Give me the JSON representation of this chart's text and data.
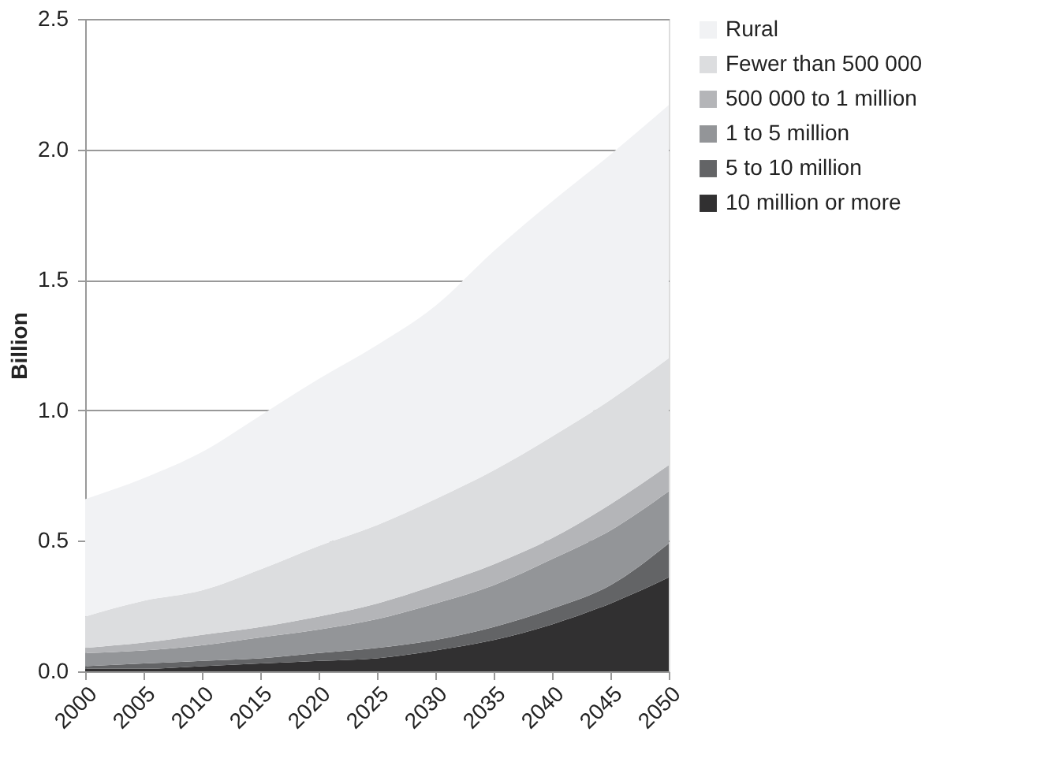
{
  "chart_data": {
    "type": "area",
    "ylabel": "Billion",
    "stacked": true,
    "x": [
      2000,
      2005,
      2010,
      2015,
      2020,
      2025,
      2030,
      2035,
      2040,
      2045,
      2050
    ],
    "xlim": [
      2000,
      2050
    ],
    "xticks": [
      2000,
      2005,
      2010,
      2015,
      2020,
      2025,
      2030,
      2035,
      2040,
      2045,
      2050
    ],
    "ylim": [
      0,
      2.5
    ],
    "yticks": [
      {
        "value": 0,
        "label": "0.0"
      },
      {
        "value": 0.5,
        "label": "0.5"
      },
      {
        "value": 1,
        "label": "1.0"
      },
      {
        "value": 1.5,
        "label": "1.5"
      },
      {
        "value": 2,
        "label": "2.0"
      },
      {
        "value": 2.5,
        "label": "2.5"
      }
    ],
    "grid": "y",
    "legend": "right",
    "series": [
      {
        "name": "10 million or more",
        "color": "#313031",
        "values": [
          0.01,
          0.01,
          0.02,
          0.03,
          0.04,
          0.05,
          0.08,
          0.12,
          0.18,
          0.26,
          0.36
        ]
      },
      {
        "name": "5 to 10 million",
        "color": "#636466",
        "values": [
          0.01,
          0.02,
          0.02,
          0.02,
          0.03,
          0.04,
          0.04,
          0.05,
          0.06,
          0.07,
          0.13
        ]
      },
      {
        "name": "1 to 5 million",
        "color": "#939598",
        "values": [
          0.05,
          0.05,
          0.06,
          0.08,
          0.09,
          0.11,
          0.14,
          0.16,
          0.19,
          0.21,
          0.2
        ]
      },
      {
        "name": "500 000 to 1 million",
        "color": "#b4b5b8",
        "values": [
          0.02,
          0.03,
          0.04,
          0.04,
          0.05,
          0.06,
          0.07,
          0.08,
          0.08,
          0.1,
          0.1
        ]
      },
      {
        "name": "Fewer than 500 000",
        "color": "#dcdddf",
        "values": [
          0.12,
          0.16,
          0.17,
          0.22,
          0.27,
          0.3,
          0.33,
          0.36,
          0.39,
          0.4,
          0.41
        ]
      },
      {
        "name": "Rural",
        "color": "#f1f2f4",
        "values": [
          0.45,
          0.47,
          0.53,
          0.59,
          0.64,
          0.69,
          0.74,
          0.84,
          0.9,
          0.94,
          0.97
        ]
      }
    ]
  }
}
